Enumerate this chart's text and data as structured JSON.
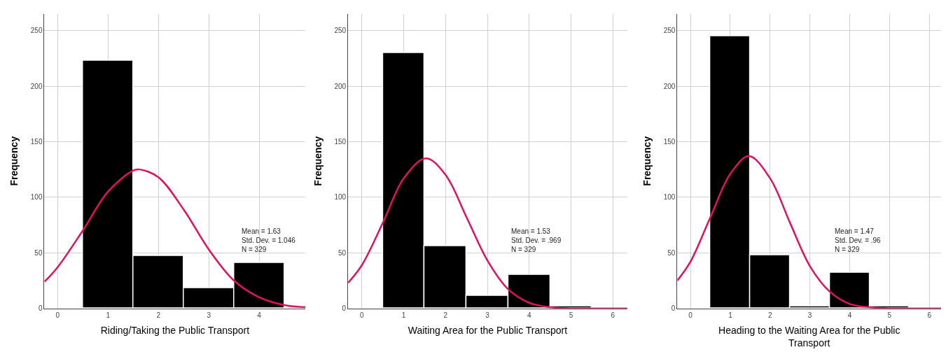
{
  "chart_data": [
    {
      "type": "histogram",
      "xlabel": "Riding/Taking the Public Transport",
      "ylabel": "Frequency",
      "bins": [
        0.5,
        1.5,
        2.5,
        3.5,
        4.5
      ],
      "values": [
        223,
        47,
        18,
        41
      ],
      "color": "#000000",
      "series": [
        {
          "type": "line",
          "color": "#e0115f",
          "x": [
            -0.26,
            0,
            0.5,
            1,
            1.5,
            1.63,
            2,
            2.5,
            3,
            3.5,
            4,
            4.5,
            4.92
          ],
          "values": [
            24,
            37,
            70,
            105,
            124,
            125,
            118,
            89,
            53,
            25,
            10,
            3,
            1
          ]
        }
      ],
      "annotations": [
        "Mean = 1.63\nStd. Dev. = 1.046\nN = 329"
      ],
      "xlim": [
        -0.26,
        4.92
      ],
      "ylim": [
        0,
        265
      ],
      "xticks": [
        0,
        1,
        2,
        3,
        4
      ],
      "yticks": [
        0,
        50,
        100,
        150,
        200,
        250
      ],
      "grid": true
    },
    {
      "type": "histogram",
      "xlabel": "Waiting Area for the Public Transport",
      "ylabel": "Frequency",
      "bins": [
        0.5,
        1.5,
        2.5,
        3.5,
        4.5,
        5.5
      ],
      "values": [
        230,
        56,
        11,
        30,
        2
      ],
      "color": "#000000",
      "series": [
        {
          "type": "line",
          "color": "#e0115f",
          "x": [
            -0.33,
            0,
            0.5,
            1,
            1.53,
            2,
            2.5,
            3,
            3.5,
            4,
            4.5,
            5,
            5.5,
            6.34
          ],
          "values": [
            23,
            39,
            77,
            117,
            135,
            120,
            82,
            43,
            17,
            5,
            1,
            0,
            0,
            0
          ]
        }
      ],
      "annotations": [
        "Mean = 1.53\nStd. Dev. = .969\nN = 329"
      ],
      "xlim": [
        -0.33,
        6.34
      ],
      "ylim": [
        0,
        265
      ],
      "xticks": [
        0,
        1,
        2,
        3,
        4,
        5,
        6
      ],
      "yticks": [
        0,
        50,
        100,
        150,
        200,
        250
      ],
      "grid": true
    },
    {
      "type": "histogram",
      "xlabel": "Heading to the Waiting Area for the Public Transport",
      "ylabel": "Frequency",
      "bins": [
        0.5,
        1.5,
        2.5,
        3.5,
        4.5,
        5.5
      ],
      "values": [
        245,
        48,
        2,
        32,
        2
      ],
      "color": "#000000",
      "series": [
        {
          "type": "line",
          "color": "#e0115f",
          "x": [
            -0.33,
            0,
            0.5,
            1,
            1.47,
            2,
            2.5,
            3,
            3.5,
            4,
            4.5,
            5,
            5.5,
            6.3
          ],
          "values": [
            25,
            42,
            82,
            121,
            137,
            117,
            77,
            38,
            15,
            4,
            1,
            0,
            0,
            0
          ]
        }
      ],
      "annotations": [
        "Mean = 1.47\nStd. Dev. = .96\nN = 329"
      ],
      "xlim": [
        -0.33,
        6.3
      ],
      "ylim": [
        0,
        265
      ],
      "xticks": [
        0,
        1,
        2,
        3,
        4,
        5,
        6
      ],
      "yticks": [
        0,
        50,
        100,
        150,
        200,
        250
      ],
      "grid": true
    }
  ]
}
